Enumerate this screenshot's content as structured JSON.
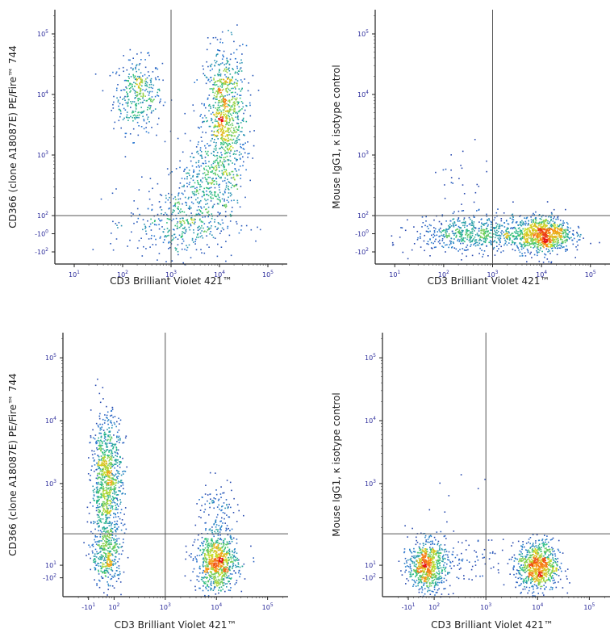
{
  "figure": {
    "description_layout": "2x2 grid of flow cytometry density plots"
  },
  "chart_data": [
    {
      "type": "scatter",
      "subtype": "flow-cytometry-density",
      "xlabel": "CD3 Brilliant Violet 421™",
      "ylabel": "CD366 (clone A18087E) PE/Fire™ 744",
      "x_ticks": [
        {
          "value": 1,
          "base": "10",
          "exp": "1"
        },
        {
          "value": 2,
          "base": "10",
          "exp": "2"
        },
        {
          "value": 3,
          "base": "10",
          "exp": "3"
        },
        {
          "value": 4,
          "base": "10",
          "exp": "4"
        },
        {
          "value": 5,
          "base": "10",
          "exp": "5"
        }
      ],
      "y_ticks": [
        {
          "value": 5,
          "base": "10",
          "exp": "5"
        },
        {
          "value": 4,
          "base": "10",
          "exp": "4"
        },
        {
          "value": 3,
          "base": "10",
          "exp": "3"
        },
        {
          "value": 2,
          "base": "10",
          "exp": "2"
        },
        {
          "value": 1.7,
          "base": "-10",
          "exp": "0"
        },
        {
          "value": 1.4,
          "base": "-10",
          "exp": "2"
        }
      ],
      "xlim": [
        0.6,
        5.4
      ],
      "ylim": [
        1.2,
        5.4
      ],
      "gate": {
        "x": 3.0,
        "y": 2.0
      },
      "populations": [
        {
          "cx": 2.3,
          "cy": 4.0,
          "sx": 0.25,
          "sy": 0.3,
          "n": 340
        },
        {
          "cx": 4.1,
          "cy": 3.6,
          "sx": 0.22,
          "sy": 0.6,
          "n": 900
        },
        {
          "cx": 3.2,
          "cy": 1.9,
          "sx": 0.55,
          "sy": 0.3,
          "n": 420
        },
        {
          "cx": 3.7,
          "cy": 2.6,
          "sx": 0.3,
          "sy": 0.35,
          "n": 260
        }
      ]
    },
    {
      "type": "scatter",
      "subtype": "flow-cytometry-density",
      "xlabel": "CD3 Brilliant Violet 421™",
      "ylabel": "Mouse IgG1, κ isotype control",
      "x_ticks": [
        {
          "value": 1,
          "base": "10",
          "exp": "1"
        },
        {
          "value": 2,
          "base": "10",
          "exp": "2"
        },
        {
          "value": 3,
          "base": "10",
          "exp": "3"
        },
        {
          "value": 4,
          "base": "10",
          "exp": "4"
        },
        {
          "value": 5,
          "base": "10",
          "exp": "5"
        }
      ],
      "y_ticks": [
        {
          "value": 5,
          "base": "10",
          "exp": "5"
        },
        {
          "value": 4,
          "base": "10",
          "exp": "4"
        },
        {
          "value": 3,
          "base": "10",
          "exp": "3"
        },
        {
          "value": 2,
          "base": "10",
          "exp": "2"
        },
        {
          "value": 1.7,
          "base": "-10",
          "exp": "0"
        },
        {
          "value": 1.4,
          "base": "-10",
          "exp": "2"
        }
      ],
      "xlim": [
        0.6,
        5.4
      ],
      "ylim": [
        1.2,
        5.4
      ],
      "gate": {
        "x": 3.0,
        "y": 2.0
      },
      "populations": [
        {
          "cx": 4.0,
          "cy": 1.7,
          "sx": 0.3,
          "sy": 0.15,
          "n": 900
        },
        {
          "cx": 2.6,
          "cy": 1.7,
          "sx": 0.6,
          "sy": 0.15,
          "n": 600
        },
        {
          "cx": 2.3,
          "cy": 2.6,
          "sx": 0.3,
          "sy": 0.3,
          "n": 25
        }
      ]
    },
    {
      "type": "scatter",
      "subtype": "flow-cytometry-density",
      "xlabel": "CD3 Brilliant Violet 421™",
      "ylabel": "CD366 (clone A18087E) PE/Fire™ 744",
      "x_ticks": [
        {
          "value": 1.5,
          "base": "-10",
          "exp": "1"
        },
        {
          "value": 2,
          "base": "10",
          "exp": "2"
        },
        {
          "value": 3,
          "base": "10",
          "exp": "3"
        },
        {
          "value": 4,
          "base": "10",
          "exp": "4"
        },
        {
          "value": 5,
          "base": "10",
          "exp": "5"
        }
      ],
      "y_ticks": [
        {
          "value": 5,
          "base": "10",
          "exp": "5"
        },
        {
          "value": 4,
          "base": "10",
          "exp": "4"
        },
        {
          "value": 3,
          "base": "10",
          "exp": "3"
        },
        {
          "value": 1.7,
          "base": "10",
          "exp": "1"
        },
        {
          "value": 1.5,
          "base": "-10",
          "exp": "2"
        }
      ],
      "xlim": [
        1.0,
        5.4
      ],
      "ylim": [
        1.2,
        5.4
      ],
      "gate": {
        "x": 3.0,
        "y": 2.2
      },
      "populations": [
        {
          "cx": 1.85,
          "cy": 3.0,
          "sx": 0.15,
          "sy": 0.55,
          "n": 950
        },
        {
          "cx": 1.85,
          "cy": 1.85,
          "sx": 0.15,
          "sy": 0.25,
          "n": 300
        },
        {
          "cx": 4.0,
          "cy": 1.75,
          "sx": 0.2,
          "sy": 0.22,
          "n": 800
        },
        {
          "cx": 4.0,
          "cy": 2.5,
          "sx": 0.2,
          "sy": 0.3,
          "n": 120
        }
      ]
    },
    {
      "type": "scatter",
      "subtype": "flow-cytometry-density",
      "xlabel": "CD3 Brilliant Violet 421™",
      "ylabel": "Mouse IgG1, κ isotype control",
      "x_ticks": [
        {
          "value": 1.5,
          "base": "-10",
          "exp": "1"
        },
        {
          "value": 2,
          "base": "10",
          "exp": "2"
        },
        {
          "value": 3,
          "base": "10",
          "exp": "3"
        },
        {
          "value": 4,
          "base": "10",
          "exp": "4"
        },
        {
          "value": 5,
          "base": "10",
          "exp": "5"
        }
      ],
      "y_ticks": [
        {
          "value": 5,
          "base": "10",
          "exp": "5"
        },
        {
          "value": 4,
          "base": "10",
          "exp": "4"
        },
        {
          "value": 3,
          "base": "10",
          "exp": "3"
        },
        {
          "value": 1.7,
          "base": "10",
          "exp": "1"
        },
        {
          "value": 1.5,
          "base": "-10",
          "exp": "2"
        }
      ],
      "xlim": [
        1.0,
        5.4
      ],
      "ylim": [
        1.2,
        5.4
      ],
      "gate": {
        "x": 3.0,
        "y": 2.2
      },
      "populations": [
        {
          "cx": 1.85,
          "cy": 1.7,
          "sx": 0.18,
          "sy": 0.2,
          "n": 700
        },
        {
          "cx": 4.0,
          "cy": 1.7,
          "sx": 0.2,
          "sy": 0.2,
          "n": 800
        },
        {
          "cx": 2.6,
          "cy": 1.8,
          "sx": 0.4,
          "sy": 0.2,
          "n": 80
        },
        {
          "cx": 2.2,
          "cy": 2.8,
          "sx": 0.4,
          "sy": 0.4,
          "n": 8
        }
      ]
    }
  ]
}
